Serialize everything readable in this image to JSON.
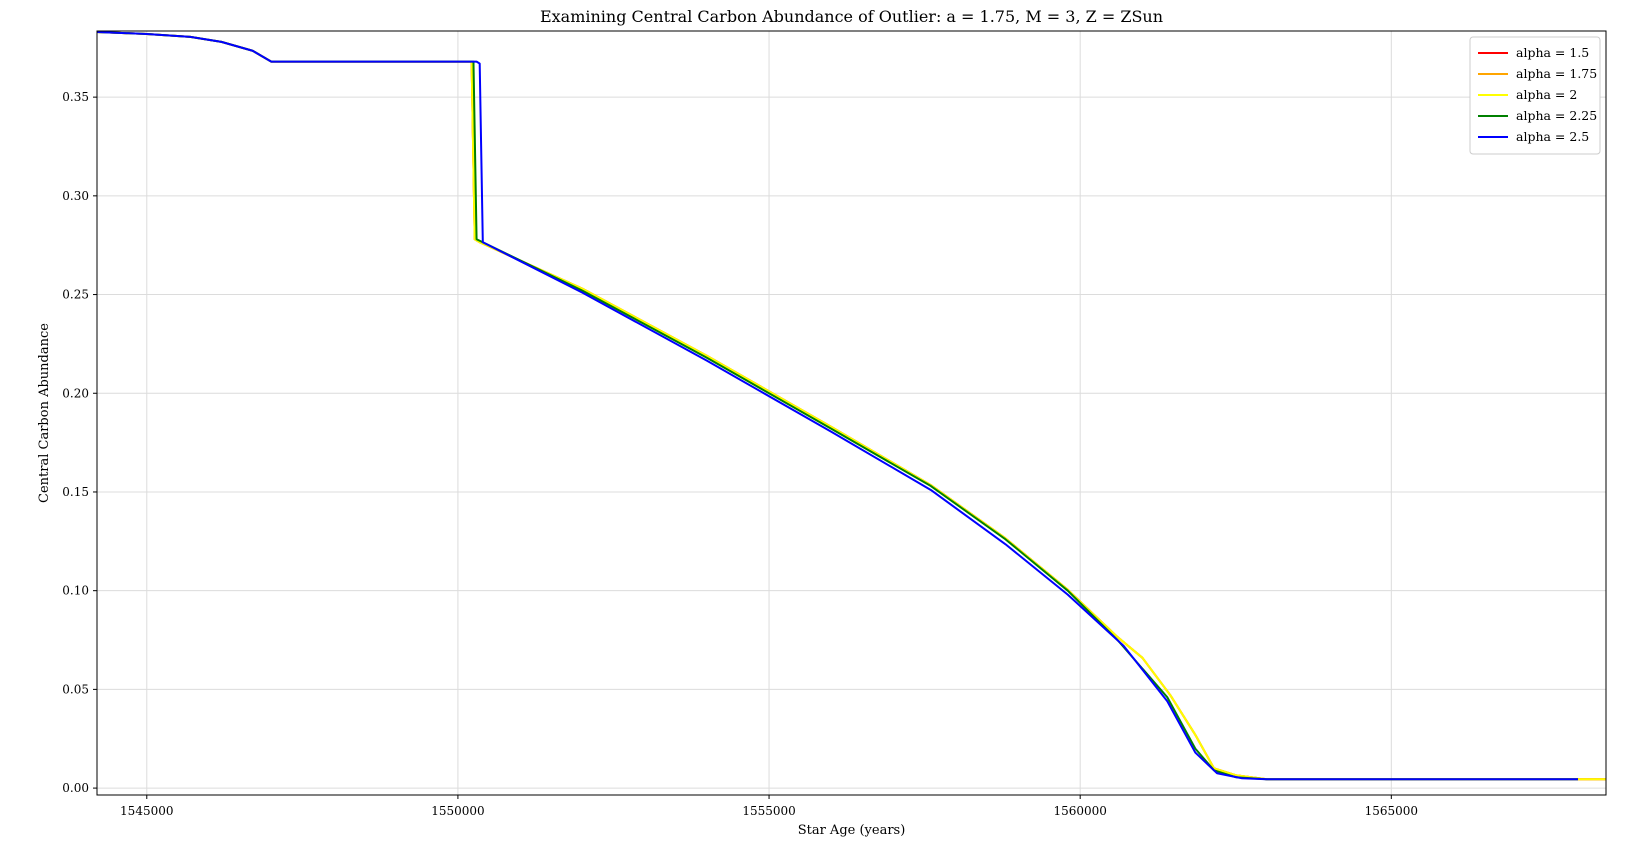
{
  "chart_data": {
    "type": "line",
    "title": "Examining Central Carbon Abundance of Outlier: a = 1.75, M = 3, Z = ZSun",
    "xlabel": "Star Age (years)",
    "ylabel": "Central Carbon Abundance",
    "xlim": [
      1544200,
      1568450
    ],
    "ylim": [
      -0.0035,
      0.3835
    ],
    "xticks": [
      1545000,
      1550000,
      1555000,
      1560000,
      1565000
    ],
    "xtick_labels": [
      "1545000",
      "1550000",
      "1555000",
      "1560000",
      "1565000"
    ],
    "yticks": [
      0.0,
      0.05,
      0.1,
      0.15,
      0.2,
      0.25,
      0.3,
      0.35
    ],
    "ytick_labels": [
      "0.00",
      "0.05",
      "0.10",
      "0.15",
      "0.20",
      "0.25",
      "0.30",
      "0.35"
    ],
    "grid": true,
    "legend_position": "top-right",
    "series": [
      {
        "name": "alpha = 1.5",
        "color": "#ff0000",
        "x": [
          1544200,
          1545000,
          1545700,
          1546200,
          1546700,
          1547000,
          1548000,
          1549000,
          1550000,
          1550220,
          1550270,
          1550350,
          1552000,
          1554000,
          1556000,
          1557600,
          1558800,
          1559800,
          1560600,
          1561000,
          1561450,
          1561850,
          1562150,
          1562500,
          1563000,
          1564000,
          1566000,
          1568000,
          1568450
        ],
        "y": [
          0.383,
          0.382,
          0.3805,
          0.378,
          0.3735,
          0.368,
          0.368,
          0.368,
          0.368,
          0.368,
          0.278,
          0.2765,
          0.253,
          0.219,
          0.183,
          0.1535,
          0.1265,
          0.1005,
          0.0765,
          0.066,
          0.047,
          0.027,
          0.01,
          0.0065,
          0.0045,
          0.0045,
          0.0045,
          0.0045,
          0.0045
        ]
      },
      {
        "name": "alpha = 1.75",
        "color": "#ffa500",
        "x": [
          1544200,
          1545000,
          1545700,
          1546200,
          1546700,
          1547000,
          1548000,
          1549000,
          1550000,
          1550220,
          1550270,
          1550350,
          1552000,
          1554000,
          1556000,
          1557600,
          1558800,
          1559800,
          1560600,
          1561000,
          1561450,
          1561850,
          1562150,
          1562500,
          1563000,
          1564000,
          1566000,
          1568000,
          1568450
        ],
        "y": [
          0.383,
          0.382,
          0.3805,
          0.378,
          0.3735,
          0.368,
          0.368,
          0.368,
          0.368,
          0.368,
          0.278,
          0.2765,
          0.253,
          0.219,
          0.183,
          0.1535,
          0.1265,
          0.1005,
          0.0765,
          0.066,
          0.047,
          0.027,
          0.01,
          0.0065,
          0.0045,
          0.0045,
          0.0045,
          0.0045,
          0.0045
        ]
      },
      {
        "name": "alpha = 2",
        "color": "#ffff00",
        "x": [
          1544200,
          1545000,
          1545700,
          1546200,
          1546700,
          1547000,
          1548000,
          1549000,
          1550000,
          1550220,
          1550270,
          1550350,
          1552000,
          1554000,
          1556000,
          1557600,
          1558800,
          1559800,
          1560600,
          1561000,
          1561450,
          1561850,
          1562150,
          1562500,
          1563000,
          1564000,
          1566000,
          1568000,
          1568450
        ],
        "y": [
          0.383,
          0.382,
          0.3805,
          0.378,
          0.3735,
          0.368,
          0.368,
          0.368,
          0.368,
          0.368,
          0.278,
          0.2765,
          0.253,
          0.219,
          0.183,
          0.1535,
          0.1265,
          0.1005,
          0.0765,
          0.066,
          0.047,
          0.027,
          0.01,
          0.0065,
          0.0045,
          0.0045,
          0.0045,
          0.0045,
          0.0045
        ]
      },
      {
        "name": "alpha = 2.25",
        "color": "#008000",
        "x": [
          1544200,
          1545000,
          1545700,
          1546200,
          1546700,
          1547000,
          1548000,
          1549000,
          1550000,
          1550250,
          1550300,
          1550400,
          1552000,
          1554000,
          1556000,
          1557600,
          1558800,
          1559800,
          1560600,
          1561400,
          1561850,
          1562150,
          1562500,
          1563000,
          1564000,
          1566000,
          1568000
        ],
        "y": [
          0.383,
          0.382,
          0.3805,
          0.378,
          0.3735,
          0.368,
          0.368,
          0.368,
          0.368,
          0.368,
          0.278,
          0.2765,
          0.252,
          0.218,
          0.182,
          0.153,
          0.126,
          0.1,
          0.075,
          0.046,
          0.02,
          0.009,
          0.0055,
          0.0045,
          0.0045,
          0.0045,
          0.0045
        ]
      },
      {
        "name": "alpha = 2.5",
        "color": "#0000ff",
        "x": [
          1544200,
          1545000,
          1545700,
          1546200,
          1546700,
          1547000,
          1548000,
          1549000,
          1550000,
          1550300,
          1550350,
          1550400,
          1552000,
          1554000,
          1556000,
          1557600,
          1558800,
          1559800,
          1560700,
          1561400,
          1561850,
          1562200,
          1562600,
          1563000,
          1564000,
          1566000,
          1568000
        ],
        "y": [
          0.383,
          0.382,
          0.3805,
          0.378,
          0.3735,
          0.368,
          0.368,
          0.368,
          0.368,
          0.368,
          0.367,
          0.2765,
          0.251,
          0.2165,
          0.1805,
          0.151,
          0.1235,
          0.098,
          0.072,
          0.044,
          0.018,
          0.0075,
          0.005,
          0.0045,
          0.0045,
          0.0045,
          0.0045
        ]
      }
    ]
  }
}
